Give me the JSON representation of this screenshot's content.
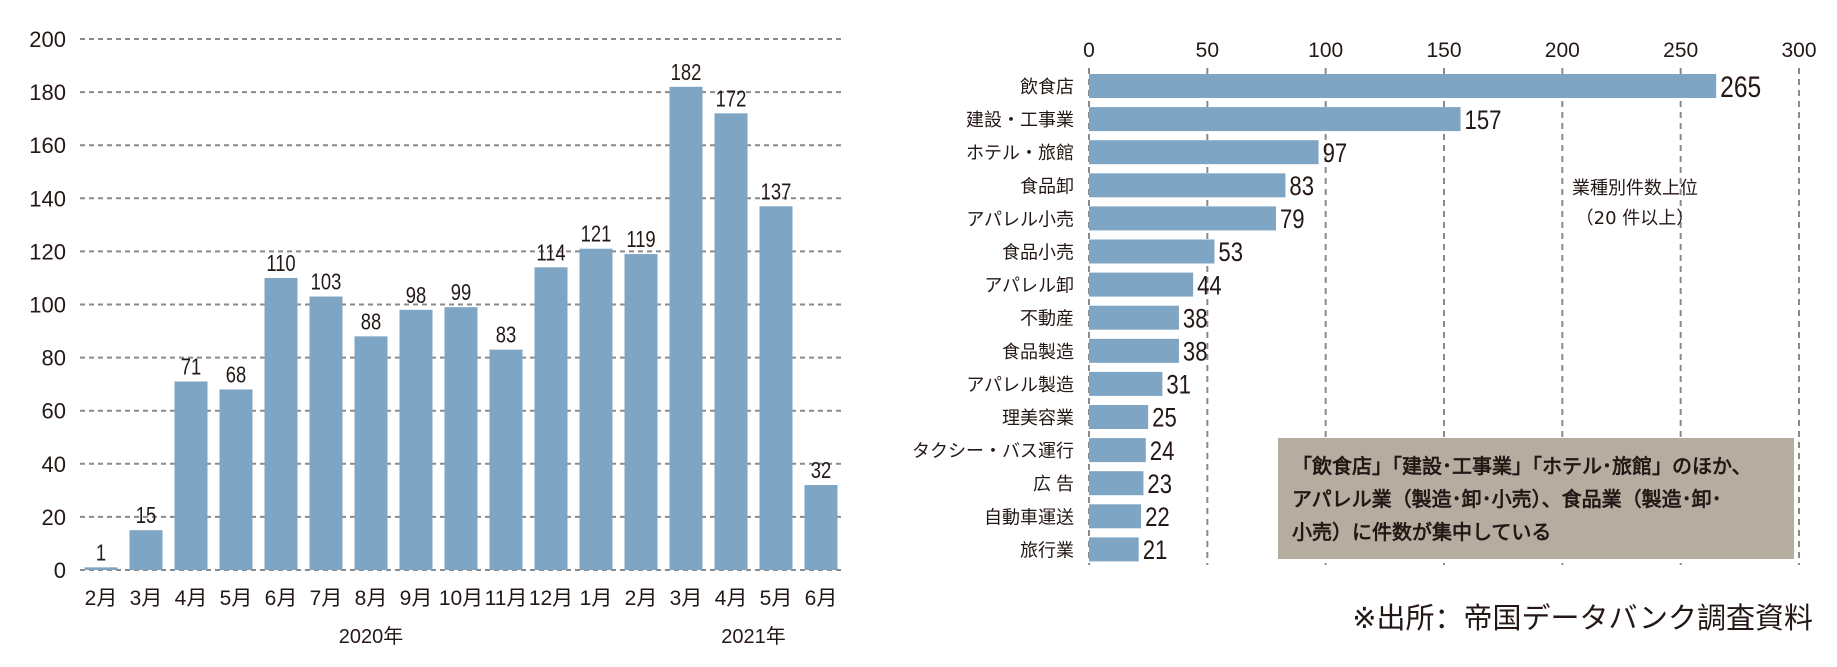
{
  "chart_data": [
    {
      "type": "bar",
      "orientation": "vertical",
      "categories": [
        "2月",
        "3月",
        "4月",
        "5月",
        "6月",
        "7月",
        "8月",
        "9月",
        "10月",
        "11月",
        "12月",
        "1月",
        "2月",
        "3月",
        "4月",
        "5月",
        "6月"
      ],
      "values": [
        1,
        15,
        71,
        68,
        110,
        103,
        88,
        98,
        99,
        83,
        114,
        121,
        119,
        182,
        172,
        137,
        32
      ],
      "year_labels": [
        "2020年",
        "2021年"
      ],
      "yticks": [
        0,
        20,
        40,
        60,
        80,
        100,
        120,
        140,
        160,
        180,
        200
      ],
      "ylim": [
        0,
        200
      ],
      "grid": true,
      "bar_color": "#7fa5c4"
    },
    {
      "type": "bar",
      "orientation": "horizontal",
      "title": "業種別件数上位",
      "subtitle": "（20 件以上）",
      "categories": [
        "飲食店",
        "建設・工事業",
        "ホテル・旅館",
        "食品卸",
        "アパレル小売",
        "食品小売",
        "アパレル卸",
        "不動産",
        "食品製造",
        "アパレル製造",
        "理美容業",
        "タクシー・バス運行",
        "広 告",
        "自動車運送",
        "旅行業"
      ],
      "values": [
        265,
        157,
        97,
        83,
        79,
        53,
        44,
        38,
        38,
        31,
        25,
        24,
        23,
        22,
        21
      ],
      "xticks": [
        0,
        50,
        100,
        150,
        200,
        250,
        300
      ],
      "xlim": [
        0,
        300
      ],
      "grid": true,
      "bar_color": "#7fa5c4"
    }
  ],
  "note": {
    "lines": [
      "「飲食店」「建設･工事業」「ホテル･旅館」のほか、",
      "アパレル業（製造･卸･小売）、食品業（製造･卸･",
      "小売）に件数が集中している"
    ],
    "bg_color": "#b5aea0"
  },
  "source": "※出所：帝国データバンク調査資料"
}
